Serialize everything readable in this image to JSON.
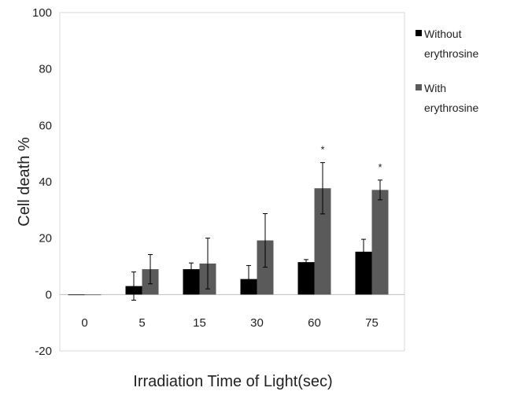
{
  "chart_data": {
    "type": "bar",
    "ylabel": "Cell death %",
    "xlabel": "Irradiation Time of Light(sec)",
    "categories": [
      "0",
      "5",
      "15",
      "30",
      "60",
      "75"
    ],
    "ylim": [
      -20,
      100
    ],
    "yticks": [
      "-20",
      "0",
      "20",
      "40",
      "60",
      "80",
      "100"
    ],
    "ytick_values": [
      -20,
      0,
      20,
      40,
      60,
      80,
      100
    ],
    "grid": false,
    "legend_position": "top-right",
    "series": [
      {
        "name": "Without erythrosine",
        "legend_lines": [
          "Without",
          "erythrosine"
        ],
        "color": "#000000",
        "values": [
          0,
          3,
          9,
          5.5,
          11.5,
          15.2
        ],
        "errors": [
          0,
          5,
          2.2,
          4.8,
          0.9,
          4.4
        ]
      },
      {
        "name": "With erythrosine",
        "legend_lines": [
          "With",
          "erythrosine"
        ],
        "color": "#5a5a5a",
        "values": [
          0,
          9,
          11,
          19.2,
          37.7,
          37.1
        ],
        "errors": [
          0,
          5.2,
          9,
          9.5,
          9.1,
          3.5
        ]
      }
    ],
    "annotations": [
      {
        "category": "60",
        "text": "*"
      },
      {
        "category": "75",
        "text": "*"
      }
    ]
  }
}
